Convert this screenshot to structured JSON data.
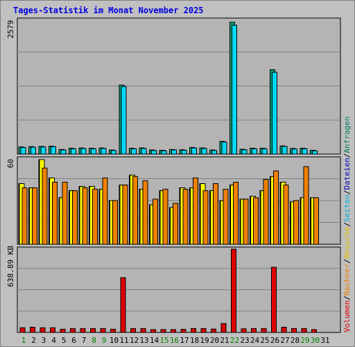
{
  "title": "Tages-Statistik im Monat November 2025",
  "colors": {
    "background": "#c0c0c0",
    "panel": "#b4b4b4",
    "weekday_label": "#000000",
    "weekend_label": "#008000",
    "anfragen": "#00a07c",
    "dateien": "#00d8f8",
    "seiten": "#00c8f0",
    "besuche": "#ffff00",
    "rechner": "#f08000",
    "volumen": "#e00000"
  },
  "legend": {
    "top_right": [
      {
        "text": "Anfragen",
        "color": "#008060"
      },
      {
        "text": "/",
        "color": "#000000"
      },
      {
        "text": "Dateien",
        "color": "#0000c0"
      },
      {
        "text": "/",
        "color": "#000000"
      },
      {
        "text": "Seiten",
        "color": "#00b0e0"
      },
      {
        "text": "/",
        "color": "#000000"
      },
      {
        "text": "Besuche",
        "color": "#e0c000"
      },
      {
        "text": "/",
        "color": "#000000"
      },
      {
        "text": "Rechner",
        "color": "#f08000"
      },
      {
        "text": "/",
        "color": "#000000"
      },
      {
        "text": "Volumen",
        "color": "#e00000"
      }
    ]
  },
  "chart_data": [
    {
      "type": "bar",
      "title": "Tages-Statistik im Monat November 2025",
      "ylabel": "2579",
      "ylim": [
        0,
        2579
      ],
      "categories": [
        "1",
        "2",
        "3",
        "4",
        "5",
        "6",
        "7",
        "8",
        "9",
        "10",
        "11",
        "12",
        "13",
        "14",
        "15",
        "16",
        "17",
        "18",
        "19",
        "20",
        "21",
        "22",
        "23",
        "24",
        "25",
        "26",
        "27",
        "28",
        "29",
        "30",
        "31"
      ],
      "series": [
        {
          "name": "Anfragen",
          "values": [
            140,
            145,
            150,
            155,
            90,
            115,
            120,
            115,
            120,
            80,
            1350,
            115,
            120,
            80,
            75,
            90,
            85,
            130,
            120,
            80,
            250,
            2579,
            95,
            115,
            115,
            1650,
            160,
            110,
            115,
            75,
            0
          ]
        },
        {
          "name": "Dateien",
          "values": [
            130,
            135,
            140,
            145,
            80,
            105,
            110,
            105,
            110,
            70,
            1320,
            105,
            110,
            70,
            65,
            80,
            75,
            120,
            110,
            70,
            235,
            2520,
            85,
            105,
            105,
            1600,
            150,
            100,
            105,
            65,
            0
          ]
        }
      ]
    },
    {
      "type": "bar",
      "ylabel": "60",
      "ylim": [
        0,
        60
      ],
      "categories": [
        "1",
        "2",
        "3",
        "4",
        "5",
        "6",
        "7",
        "8",
        "9",
        "10",
        "11",
        "12",
        "13",
        "14",
        "15",
        "16",
        "17",
        "18",
        "19",
        "20",
        "21",
        "22",
        "23",
        "24",
        "25",
        "26",
        "27",
        "28",
        "29",
        "30",
        "31"
      ],
      "series": [
        {
          "name": "Seiten",
          "values": [
            43,
            40,
            60,
            47,
            33,
            38,
            41,
            41,
            39,
            31,
            42,
            49,
            39,
            28,
            38,
            26,
            40,
            40,
            43,
            38,
            31,
            42,
            32,
            34,
            38,
            48,
            44,
            30,
            33,
            33,
            0
          ]
        },
        {
          "name": "Besuche",
          "values": [
            43,
            40,
            60,
            47,
            33,
            38,
            41,
            41,
            39,
            31,
            42,
            49,
            39,
            28,
            38,
            26,
            40,
            40,
            43,
            38,
            31,
            42,
            32,
            34,
            38,
            48,
            44,
            30,
            33,
            33,
            0
          ]
        },
        {
          "name": "Rechner",
          "values": [
            40,
            40,
            54,
            44,
            44,
            38,
            40,
            39,
            47,
            31,
            42,
            48,
            45,
            32,
            39,
            29,
            39,
            47,
            38,
            43,
            39,
            44,
            32,
            33,
            46,
            52,
            42,
            31,
            55,
            33,
            0
          ]
        }
      ]
    },
    {
      "type": "bar",
      "ylabel": "638.89 KB",
      "ylim": [
        0,
        638.89
      ],
      "categories": [
        "1",
        "2",
        "3",
        "4",
        "5",
        "6",
        "7",
        "8",
        "9",
        "10",
        "11",
        "12",
        "13",
        "14",
        "15",
        "16",
        "17",
        "18",
        "19",
        "20",
        "21",
        "22",
        "23",
        "24",
        "25",
        "26",
        "27",
        "28",
        "29",
        "30",
        "31"
      ],
      "series": [
        {
          "name": "Volumen",
          "values": [
            36,
            40,
            36,
            36,
            25,
            30,
            30,
            30,
            30,
            25,
            420,
            30,
            30,
            22,
            22,
            22,
            24,
            30,
            30,
            26,
            68,
            638.89,
            28,
            30,
            30,
            500,
            40,
            30,
            30,
            22,
            0
          ]
        }
      ]
    }
  ],
  "weekend_days": [
    1,
    8,
    9,
    15,
    16,
    22,
    29,
    30
  ]
}
